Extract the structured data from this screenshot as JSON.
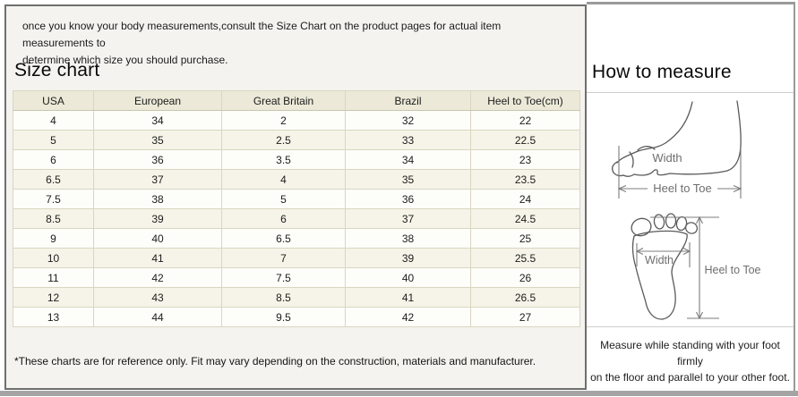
{
  "intro": {
    "lines": [
      "once you know your body measurements,consult the Size Chart on the product pages for actual item measurements to",
      "determine which size you should purchase."
    ]
  },
  "size_chart": {
    "title": "Size chart",
    "table": {
      "headers": [
        "USA",
        "European",
        "Great Britain",
        "Brazil",
        "Heel to Toe(cm)"
      ],
      "rows": [
        [
          "4",
          "34",
          "2",
          "32",
          "22"
        ],
        [
          "5",
          "35",
          "2.5",
          "33",
          "22.5"
        ],
        [
          "6",
          "36",
          "3.5",
          "34",
          "23"
        ],
        [
          "6.5",
          "37",
          "4",
          "35",
          "23.5"
        ],
        [
          "7.5",
          "38",
          "5",
          "36",
          "24"
        ],
        [
          "8.5",
          "39",
          "6",
          "37",
          "24.5"
        ],
        [
          "9",
          "40",
          "6.5",
          "38",
          "25"
        ],
        [
          "10",
          "41",
          "7",
          "39",
          "25.5"
        ],
        [
          "11",
          "42",
          "7.5",
          "40",
          "26"
        ],
        [
          "12",
          "43",
          "8.5",
          "41",
          "26.5"
        ],
        [
          "13",
          "44",
          "9.5",
          "42",
          "27"
        ]
      ]
    },
    "footnote": "*These charts are for reference only. Fit may vary depending on the construction, materials and manufacturer."
  },
  "how_to_measure": {
    "title": "How to measure",
    "side_view": {
      "width_label": "Width",
      "heel_to_toe_label": "Heel to Toe"
    },
    "sole_view": {
      "width_label": "Width",
      "heel_to_toe_label": "Heel to Toe"
    },
    "instruction_lines": [
      "Measure while standing with your foot firmly",
      "on the floor and parallel to your other foot."
    ]
  },
  "colors": {
    "left_panel_bg": "#f4f3ef",
    "frame_border": "#6f6f6f",
    "table_header_bg": "#ece9d8",
    "table_row_alt_bg": "#f6f4e8",
    "table_border": "#d9d6c1",
    "diagram_line": "#5a5a5a",
    "panel_border": "#9a9a9a",
    "bottom_bar": "#a4a4a4"
  }
}
